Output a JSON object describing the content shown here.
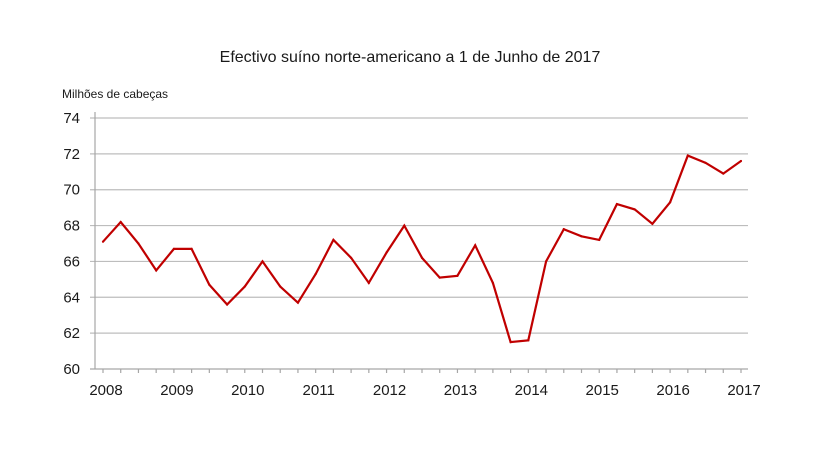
{
  "chart_data": {
    "type": "line",
    "title": "Efectivo suíno norte-americano a 1 de Junho de 2017",
    "ylabel": "Milhões de cabeças",
    "xlabel": "",
    "ylim": [
      60,
      74
    ],
    "yticks": [
      "60",
      "62",
      "64",
      "66",
      "68",
      "70",
      "72",
      "74"
    ],
    "ytick_values": [
      60,
      62,
      64,
      66,
      68,
      70,
      72,
      74
    ],
    "xtick_labels": [
      "2008",
      "2009",
      "2010",
      "2011",
      "2012",
      "2013",
      "2014",
      "2015",
      "2016",
      "2017"
    ],
    "points_per_year": 4,
    "grid": true,
    "legend": "none",
    "series": [
      {
        "name": "Efectivo suíno",
        "color": "#c00000",
        "values": [
          67.1,
          68.2,
          67.0,
          65.5,
          66.7,
          66.7,
          64.7,
          63.6,
          64.6,
          66.0,
          64.6,
          63.7,
          65.3,
          67.2,
          66.2,
          64.8,
          66.5,
          68.0,
          66.2,
          65.1,
          65.2,
          66.9,
          64.8,
          61.5,
          61.6,
          66.0,
          67.8,
          67.4,
          67.2,
          69.2,
          68.9,
          68.1,
          69.3,
          71.9,
          71.5,
          70.9,
          71.6
        ]
      }
    ]
  }
}
